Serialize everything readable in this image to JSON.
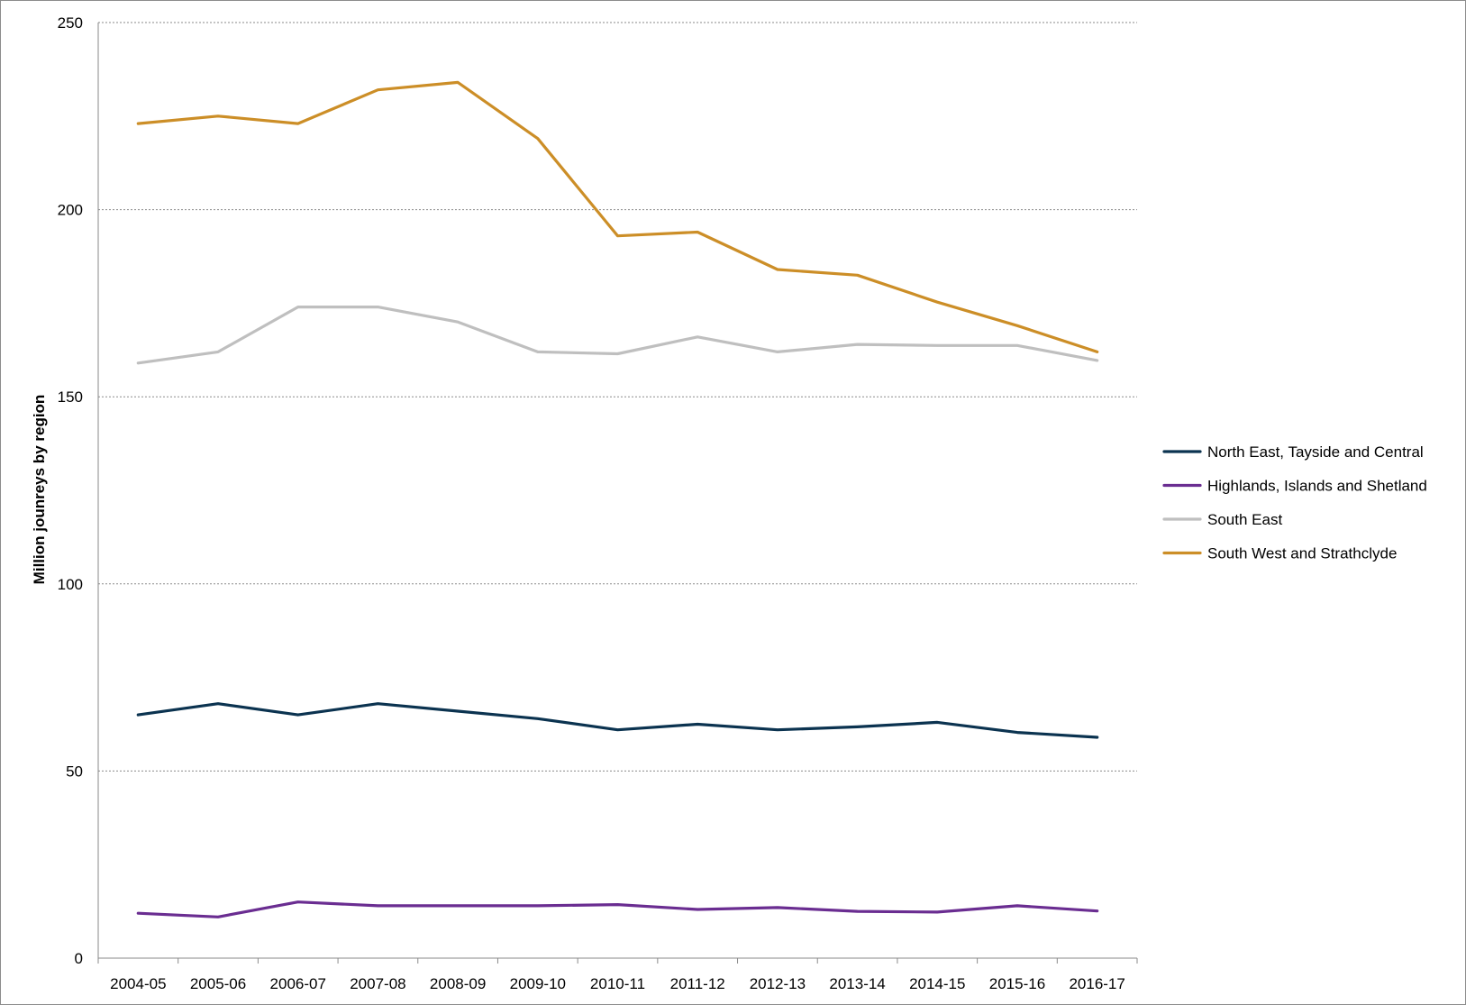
{
  "chart_data": {
    "type": "line",
    "title": "",
    "xlabel": "",
    "ylabel": "Million jounreys by region",
    "ylim": [
      0,
      250
    ],
    "yticks": [
      0,
      50,
      100,
      150,
      200,
      250
    ],
    "grid": "horizontal dashed",
    "legend_position": "right",
    "categories": [
      "2004-05",
      "2005-06",
      "2006-07",
      "2007-08",
      "2008-09",
      "2009-10",
      "2010-11",
      "2011-12",
      "2012-13",
      "2013-14",
      "2014-15",
      "2015-16",
      "2016-17"
    ],
    "series": [
      {
        "name": "North East, Tayside and Central",
        "color": "#0b3350",
        "values": [
          65,
          68,
          65,
          68,
          66,
          64,
          61,
          62.5,
          61,
          61.8,
          63,
          60.3,
          59
        ]
      },
      {
        "name": "Highlands, Islands and Shetland",
        "color": "#6a2d91",
        "values": [
          12,
          11,
          15,
          14,
          14,
          14,
          14.3,
          13,
          13.5,
          12.5,
          12.3,
          14,
          12.6
        ]
      },
      {
        "name": "South East",
        "color": "#bfbfbf",
        "values": [
          159,
          162,
          174,
          174,
          170,
          162,
          161.5,
          166,
          162,
          164,
          163.7,
          163.7,
          159.7
        ]
      },
      {
        "name": "South West and Strathclyde",
        "color": "#cc8e27",
        "values": [
          223,
          225,
          223,
          232,
          234,
          219,
          193,
          194,
          184,
          182.5,
          175.3,
          169,
          162
        ]
      }
    ]
  }
}
